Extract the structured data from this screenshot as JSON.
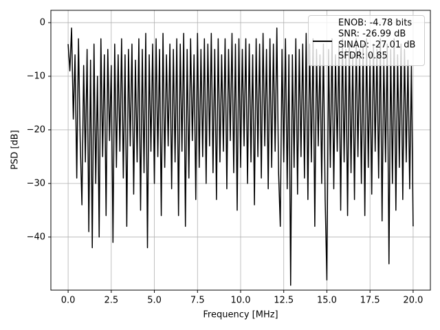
{
  "chart_data": {
    "type": "line",
    "xlabel": "Frequency [MHz]",
    "ylabel": "PSD [dB]",
    "xlim": [
      -1.0,
      21.0
    ],
    "ylim": [
      -49.9,
      2.3
    ],
    "xticks": [
      {
        "value": 0,
        "label": "0.0"
      },
      2.5,
      {
        "value": 5,
        "label": "5.0"
      },
      7.5,
      {
        "value": 10,
        "label": "10.0"
      },
      12.5,
      {
        "value": 15,
        "label": "15.0"
      },
      17.5,
      {
        "value": 20,
        "label": "20.0"
      }
    ],
    "yticks": [
      {
        "value": -40,
        "label": "−40"
      },
      {
        "value": -30,
        "label": "−30"
      },
      {
        "value": -20,
        "label": "−20"
      },
      {
        "value": -10,
        "label": "−10"
      },
      0
    ],
    "grid": true,
    "legend": "upper right",
    "x": [
      0,
      0.1,
      0.2,
      0.3,
      0.4,
      0.5,
      0.6,
      0.7,
      0.8,
      0.9,
      1,
      1.1,
      1.2,
      1.3,
      1.4,
      1.5,
      1.6,
      1.7,
      1.8,
      1.9,
      2,
      2.1,
      2.2,
      2.3,
      2.4,
      2.5,
      2.6,
      2.7,
      2.8,
      2.9,
      3,
      3.1,
      3.2,
      3.3,
      3.4,
      3.5,
      3.6,
      3.7,
      3.8,
      3.9,
      4,
      4.1,
      4.2,
      4.3,
      4.4,
      4.5,
      4.6,
      4.7,
      4.8,
      4.9,
      5,
      5.1,
      5.2,
      5.3,
      5.4,
      5.5,
      5.6,
      5.7,
      5.8,
      5.9,
      6,
      6.1,
      6.2,
      6.3,
      6.4,
      6.5,
      6.6,
      6.7,
      6.8,
      6.9,
      7,
      7.1,
      7.2,
      7.3,
      7.4,
      7.5,
      7.6,
      7.7,
      7.8,
      7.9,
      8,
      8.1,
      8.2,
      8.3,
      8.4,
      8.5,
      8.6,
      8.7,
      8.8,
      8.9,
      9,
      9.1,
      9.2,
      9.3,
      9.4,
      9.5,
      9.6,
      9.7,
      9.8,
      9.9,
      10,
      10.1,
      10.2,
      10.3,
      10.4,
      10.5,
      10.6,
      10.7,
      10.8,
      10.9,
      11,
      11.1,
      11.2,
      11.3,
      11.4,
      11.5,
      11.6,
      11.7,
      11.8,
      11.9,
      12,
      12.1,
      12.2,
      12.3,
      12.4,
      12.5,
      12.6,
      12.7,
      12.8,
      12.9,
      13,
      13.1,
      13.2,
      13.3,
      13.4,
      13.5,
      13.6,
      13.7,
      13.8,
      13.9,
      14,
      14.1,
      14.2,
      14.3,
      14.4,
      14.5,
      14.6,
      14.7,
      14.8,
      14.9,
      15,
      15.1,
      15.2,
      15.3,
      15.4,
      15.5,
      15.6,
      15.7,
      15.8,
      15.9,
      16,
      16.1,
      16.2,
      16.3,
      16.4,
      16.5,
      16.6,
      16.7,
      16.8,
      16.9,
      17,
      17.1,
      17.2,
      17.3,
      17.4,
      17.5,
      17.6,
      17.7,
      17.8,
      17.9,
      18,
      18.1,
      18.2,
      18.3,
      18.4,
      18.5,
      18.6,
      18.7,
      18.8,
      18.9,
      19,
      19.1,
      19.2,
      19.3,
      19.4,
      19.5,
      19.6,
      19.7,
      19.8,
      19.9,
      20
    ],
    "series": [
      {
        "name": "ENOB: -4.78 bits\nSNR: -26.99 dB\nSINAD: -27.01 dB\nSFDR: 0.85",
        "color": "#000000",
        "values": [
          -4,
          -9,
          -1,
          -18,
          -6,
          -29,
          -3,
          -22,
          -34,
          -8,
          -26,
          -5,
          -39,
          -7,
          -42,
          -4,
          -30,
          -10,
          -40,
          -3,
          -25,
          -6,
          -36,
          -5,
          -22,
          -8,
          -41,
          -4,
          -27,
          -6,
          -24,
          -3,
          -29,
          -6,
          -38,
          -5,
          -23,
          -4,
          -32,
          -7,
          -26,
          -3,
          -35,
          -5,
          -28,
          -2,
          -42,
          -6,
          -24,
          -4,
          -30,
          -3,
          -25,
          -5,
          -36,
          -2,
          -27,
          -6,
          -23,
          -4,
          -31,
          -5,
          -26,
          -3,
          -36,
          -4,
          -24,
          -2,
          -38,
          -5,
          -29,
          -3,
          -22,
          -6,
          -33,
          -2,
          -27,
          -5,
          -25,
          -3,
          -30,
          -4,
          -23,
          -2,
          -28,
          -5,
          -33,
          -3,
          -26,
          -6,
          -24,
          -3,
          -31,
          -5,
          -22,
          -2,
          -28,
          -4,
          -35,
          -3,
          -27,
          -5,
          -23,
          -3,
          -30,
          -4,
          -26,
          -6,
          -34,
          -3,
          -25,
          -4,
          -29,
          -2,
          -23,
          -5,
          -31,
          -3,
          -27,
          -4,
          -24,
          -1,
          -28,
          -38,
          -5,
          -26,
          -3,
          -31,
          -6,
          -49,
          -6,
          -27,
          -3,
          -32,
          -5,
          -25,
          -4,
          -29,
          -2,
          -33,
          -4,
          -26,
          -3,
          -38,
          -5,
          -23,
          -6,
          -30,
          -4,
          -33,
          -48,
          -5,
          -27,
          -3,
          -31,
          -6,
          -24,
          -4,
          -35,
          -3,
          -26,
          -5,
          -36,
          -4,
          -28,
          -6,
          -33,
          -3,
          -25,
          -5,
          -30,
          -4,
          -36,
          -3,
          -27,
          -6,
          -32,
          -4,
          -24,
          -5,
          -29,
          -3,
          -37,
          -6,
          -26,
          -4,
          -45,
          -5,
          -30,
          -3,
          -35,
          -6,
          -27,
          -4,
          -33,
          -5,
          -26,
          -7,
          -31,
          -8,
          -38
        ]
      }
    ]
  }
}
